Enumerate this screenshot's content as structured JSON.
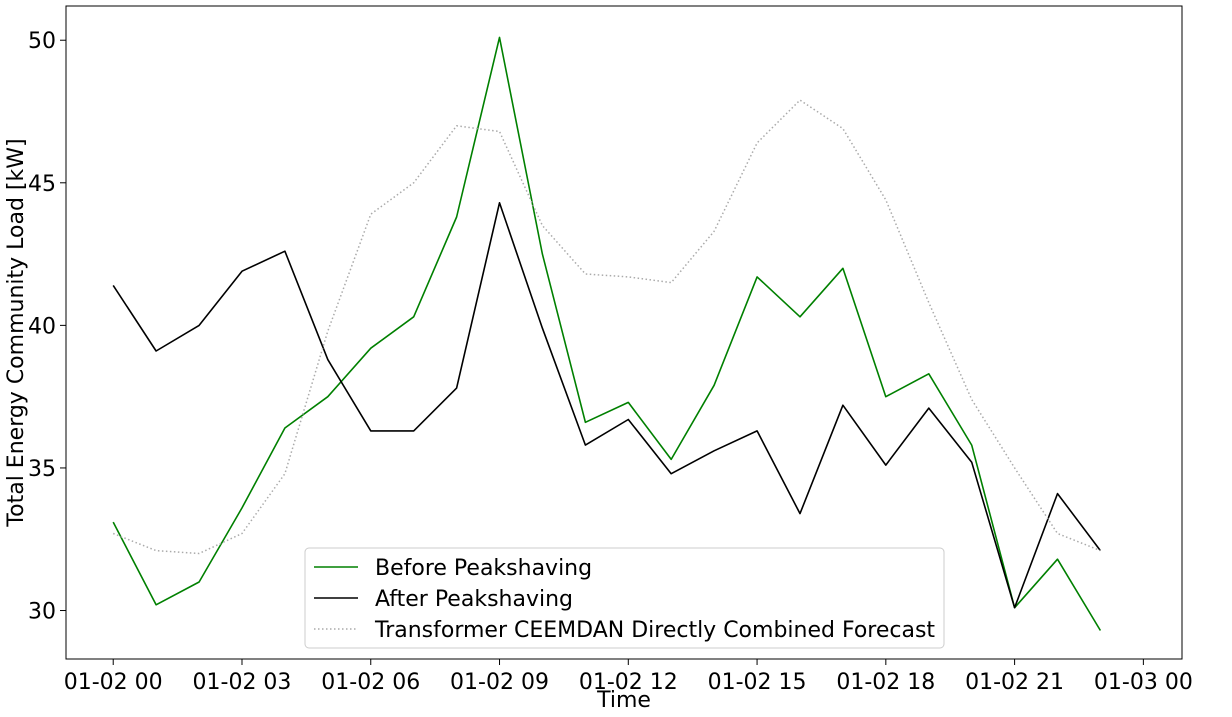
{
  "chart_data": {
    "type": "line",
    "title": "",
    "xlabel": "Time",
    "ylabel": "Total Energy Community Load [kW]",
    "x": [
      "01-02 00",
      "01-02 01",
      "01-02 02",
      "01-02 03",
      "01-02 04",
      "01-02 05",
      "01-02 06",
      "01-02 07",
      "01-02 08",
      "01-02 09",
      "01-02 10",
      "01-02 11",
      "01-02 12",
      "01-02 13",
      "01-02 14",
      "01-02 15",
      "01-02 16",
      "01-02 17",
      "01-02 18",
      "01-02 19",
      "01-02 20",
      "01-02 21",
      "01-02 22",
      "01-02 23"
    ],
    "x_ticks": [
      "01-02 00",
      "01-02 03",
      "01-02 06",
      "01-02 09",
      "01-02 12",
      "01-02 15",
      "01-02 18",
      "01-02 21",
      "01-03 00"
    ],
    "xlim": [
      "01-01 22:54",
      "01-03 00:54"
    ],
    "y_ticks": [
      30,
      35,
      40,
      45,
      50
    ],
    "ylim": [
      28.3,
      51.2
    ],
    "grid": false,
    "legend_position": "lower-center",
    "series": [
      {
        "name": "Before Peakshaving",
        "color": "#008000",
        "style": "solid",
        "values": [
          33.1,
          30.2,
          31.0,
          33.6,
          36.4,
          37.5,
          39.2,
          40.3,
          43.8,
          50.1,
          42.5,
          36.6,
          37.3,
          35.3,
          37.9,
          41.7,
          40.3,
          42.0,
          37.5,
          38.3,
          35.8,
          30.1,
          31.8,
          29.3
        ]
      },
      {
        "name": "After Peakshaving",
        "color": "#000000",
        "style": "solid",
        "values": [
          41.4,
          39.1,
          40.0,
          41.9,
          42.6,
          38.8,
          36.3,
          36.3,
          37.8,
          44.3,
          39.9,
          35.8,
          36.7,
          34.8,
          35.6,
          36.3,
          33.4,
          37.2,
          35.1,
          37.1,
          35.2,
          30.1,
          34.1,
          32.1
        ]
      },
      {
        "name": "Transformer CEEMDAN Directly Combined Forecast",
        "color": "#aaaaaa",
        "style": "dotted",
        "values": [
          32.7,
          32.1,
          32.0,
          32.7,
          34.8,
          39.8,
          43.9,
          45.0,
          47.0,
          46.8,
          43.5,
          41.8,
          41.7,
          41.5,
          43.3,
          46.4,
          47.9,
          46.9,
          44.4,
          40.8,
          37.4,
          35.0,
          32.7,
          32.1
        ]
      }
    ]
  }
}
